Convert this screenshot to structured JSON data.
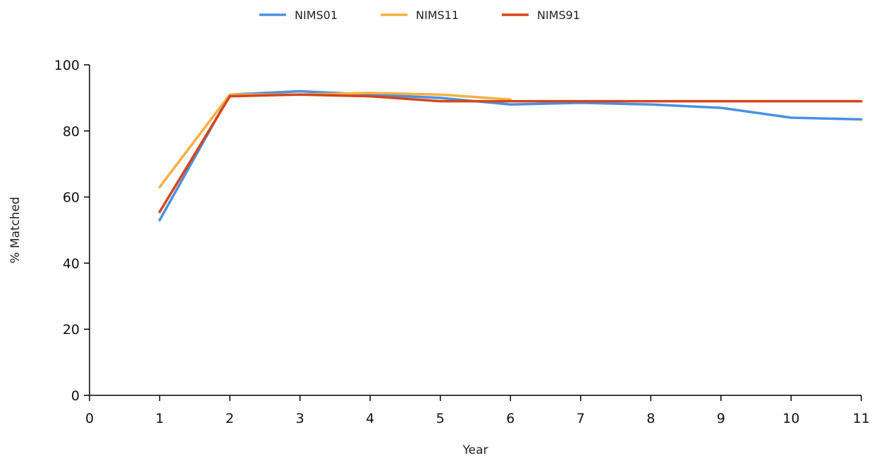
{
  "chart_data": {
    "type": "line",
    "xlabel": "Year",
    "ylabel": "% Matched",
    "xlim": [
      0,
      11
    ],
    "ylim": [
      0,
      100
    ],
    "x_ticks": [
      0,
      1,
      2,
      3,
      4,
      5,
      6,
      7,
      8,
      9,
      10,
      11
    ],
    "y_ticks": [
      0,
      20,
      40,
      60,
      80,
      100
    ],
    "grid": false,
    "legend_position": "top-center",
    "series": [
      {
        "name": "NIMS01",
        "color": "#4a90e2",
        "x": [
          1,
          2,
          3,
          4,
          5,
          6,
          7,
          8,
          9,
          10,
          11
        ],
        "y": [
          53,
          91,
          92,
          91,
          90,
          88,
          88.5,
          88,
          87,
          84,
          83.5
        ]
      },
      {
        "name": "NIMS11",
        "color": "#f5b041",
        "x": [
          1,
          2,
          3,
          4,
          5,
          6
        ],
        "y": [
          63,
          91,
          91,
          91.5,
          91,
          89.5
        ]
      },
      {
        "name": "NIMS91",
        "color": "#d6451b",
        "x": [
          1,
          2,
          3,
          4,
          5,
          6,
          7,
          8,
          9,
          10,
          11
        ],
        "y": [
          55.5,
          90.5,
          91,
          90.5,
          89,
          89,
          89,
          89,
          89,
          89,
          89
        ]
      }
    ]
  }
}
